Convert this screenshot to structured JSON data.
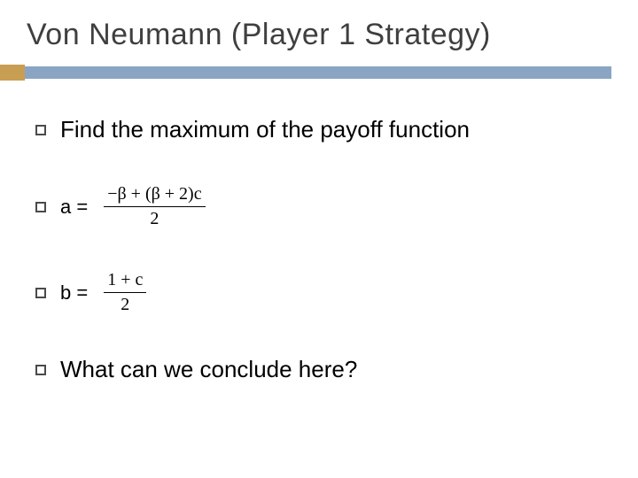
{
  "title": "Von Neumann (Player 1 Strategy)",
  "colors": {
    "accent": "#c89e52",
    "rule": "#89a5c3",
    "title_text": "#3f3f3f",
    "body_text": "#000000",
    "background": "#ffffff",
    "bullet_border": "#4a4a4a"
  },
  "typography": {
    "title_fontsize": 34,
    "body_fontsize": 26,
    "eq_label_fontsize": 22,
    "fraction_fontsize": 20
  },
  "bullets": [
    {
      "text": "Find the maximum of the payoff function"
    },
    {
      "label": "a =",
      "numerator": "−β + (β + 2)c",
      "denominator": "2"
    },
    {
      "label": "b =",
      "numerator": "1 + c",
      "denominator": "2"
    },
    {
      "text": "What can we conclude here?"
    }
  ]
}
